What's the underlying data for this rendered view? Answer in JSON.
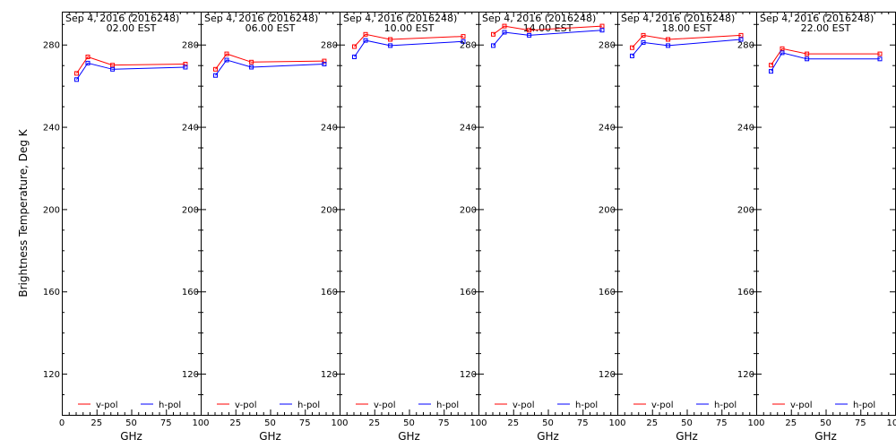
{
  "figure": {
    "ylabel": "Brightness Temperature, Deg K",
    "xlabel": "GHz",
    "colors": {
      "v_pol": "#ff0000",
      "h_pol": "#0000ff",
      "axis": "#000000"
    }
  },
  "chart_data": [
    {
      "type": "line",
      "title": "Sep  4, 2016 (2016248)",
      "subtitle": "02.00 EST",
      "xlabel": "GHz",
      "ylabel": "Brightness Temperature, Deg K",
      "xlim": [
        0,
        100
      ],
      "ylim": [
        100,
        296
      ],
      "xticks": [
        0,
        25,
        50,
        75,
        100
      ],
      "xtick_labels": [
        "0",
        "25",
        "50",
        "75",
        "100"
      ],
      "yticks": [
        120,
        160,
        200,
        240,
        280
      ],
      "ytick_labels": [
        "120",
        "160",
        "200",
        "240",
        "280"
      ],
      "grid": false,
      "legend": "bottom",
      "x": [
        10.65,
        18.7,
        36.5,
        89
      ],
      "series": [
        {
          "name": "v-pol",
          "color": "#ff0000",
          "values": [
            266,
            274,
            270,
            270.5
          ]
        },
        {
          "name": "h-pol",
          "color": "#0000ff",
          "values": [
            263,
            271,
            268,
            269
          ]
        }
      ]
    },
    {
      "type": "line",
      "title": "Sep  4, 2016 (2016248)",
      "subtitle": "06.00 EST",
      "xlabel": "GHz",
      "ylabel": "",
      "xlim": [
        0,
        100
      ],
      "ylim": [
        100,
        296
      ],
      "xticks": [
        0,
        25,
        50,
        75,
        100
      ],
      "xtick_labels": [
        "",
        "25",
        "50",
        "75",
        "100"
      ],
      "yticks": [
        120,
        160,
        200,
        240,
        280
      ],
      "ytick_labels": [
        "120",
        "160",
        "200",
        "240",
        "280"
      ],
      "grid": false,
      "legend": "bottom",
      "x": [
        10.65,
        18.7,
        36.5,
        89
      ],
      "series": [
        {
          "name": "v-pol",
          "color": "#ff0000",
          "values": [
            268,
            275.5,
            271.5,
            272
          ]
        },
        {
          "name": "h-pol",
          "color": "#0000ff",
          "values": [
            265,
            272.5,
            269,
            270.5
          ]
        }
      ]
    },
    {
      "type": "line",
      "title": "Sep  4, 2016 (2016248)",
      "subtitle": "10.00 EST",
      "xlabel": "GHz",
      "ylabel": "",
      "xlim": [
        0,
        100
      ],
      "ylim": [
        100,
        296
      ],
      "xticks": [
        0,
        25,
        50,
        75,
        100
      ],
      "xtick_labels": [
        "",
        "25",
        "50",
        "75",
        "100"
      ],
      "yticks": [
        120,
        160,
        200,
        240,
        280
      ],
      "ytick_labels": [
        "120",
        "160",
        "200",
        "240",
        "280"
      ],
      "grid": false,
      "legend": "bottom",
      "x": [
        10.65,
        18.7,
        36.5,
        89
      ],
      "series": [
        {
          "name": "v-pol",
          "color": "#ff0000",
          "values": [
            279,
            285,
            282.5,
            284
          ]
        },
        {
          "name": "h-pol",
          "color": "#0000ff",
          "values": [
            274,
            282,
            279.5,
            281.5
          ]
        }
      ]
    },
    {
      "type": "line",
      "title": "Sep  4, 2016 (2016248)",
      "subtitle": "14.00 EST",
      "xlabel": "GHz",
      "ylabel": "",
      "xlim": [
        0,
        100
      ],
      "ylim": [
        100,
        296
      ],
      "xticks": [
        0,
        25,
        50,
        75,
        100
      ],
      "xtick_labels": [
        "",
        "25",
        "50",
        "75",
        "100"
      ],
      "yticks": [
        120,
        160,
        200,
        240,
        280
      ],
      "ytick_labels": [
        "120",
        "160",
        "200",
        "240",
        "280"
      ],
      "grid": false,
      "legend": "bottom",
      "x": [
        10.65,
        18.7,
        36.5,
        89
      ],
      "series": [
        {
          "name": "v-pol",
          "color": "#ff0000",
          "values": [
            285,
            289,
            287,
            289
          ]
        },
        {
          "name": "h-pol",
          "color": "#0000ff",
          "values": [
            279.5,
            286,
            284.5,
            287
          ]
        }
      ]
    },
    {
      "type": "line",
      "title": "Sep  4, 2016 (2016248)",
      "subtitle": "18.00 EST",
      "xlabel": "GHz",
      "ylabel": "",
      "xlim": [
        0,
        100
      ],
      "ylim": [
        100,
        296
      ],
      "xticks": [
        0,
        25,
        50,
        75,
        100
      ],
      "xtick_labels": [
        "",
        "25",
        "50",
        "75",
        "100"
      ],
      "yticks": [
        120,
        160,
        200,
        240,
        280
      ],
      "ytick_labels": [
        "120",
        "160",
        "200",
        "240",
        "280"
      ],
      "grid": false,
      "legend": "bottom",
      "x": [
        10.65,
        18.7,
        36.5,
        89
      ],
      "series": [
        {
          "name": "v-pol",
          "color": "#ff0000",
          "values": [
            278.5,
            284.5,
            282.5,
            284.5
          ]
        },
        {
          "name": "h-pol",
          "color": "#0000ff",
          "values": [
            274.5,
            281,
            279.5,
            282.5
          ]
        }
      ]
    },
    {
      "type": "line",
      "title": "Sep  4, 2016 (2016248)",
      "subtitle": "22.00 EST",
      "xlabel": "GHz",
      "ylabel": "",
      "xlim": [
        0,
        100
      ],
      "ylim": [
        100,
        296
      ],
      "xticks": [
        0,
        25,
        50,
        75,
        100
      ],
      "xtick_labels": [
        "",
        "25",
        "50",
        "75",
        "100"
      ],
      "yticks": [
        120,
        160,
        200,
        240,
        280
      ],
      "ytick_labels": [
        "120",
        "160",
        "200",
        "240",
        "280"
      ],
      "grid": false,
      "legend": "bottom",
      "x": [
        10.65,
        18.7,
        36.5,
        89
      ],
      "series": [
        {
          "name": "v-pol",
          "color": "#ff0000",
          "values": [
            270,
            278,
            275.5,
            275.5
          ]
        },
        {
          "name": "h-pol",
          "color": "#0000ff",
          "values": [
            267,
            276,
            273,
            273
          ]
        }
      ]
    }
  ]
}
